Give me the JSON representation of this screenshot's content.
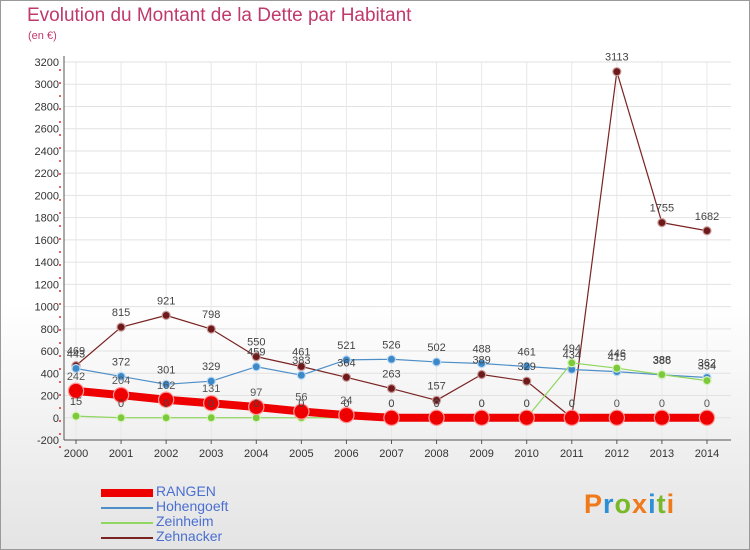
{
  "header": {
    "title": "Evolution du Montant de la Dette par Habitant",
    "unit": "(en €)"
  },
  "logo": {
    "text": "Proxiti",
    "colors": [
      "#f07a1a",
      "#2d8fd6",
      "#79b829",
      "#f07a1a",
      "#2d8fd6",
      "#79b829",
      "#f07a1a"
    ]
  },
  "chart_data": {
    "type": "line",
    "title": "Evolution du Montant de la Dette par Habitant",
    "ylabel": "(en €)",
    "xlabel": "",
    "x": [
      "2000",
      "2001",
      "2002",
      "2003",
      "2004",
      "2005",
      "2006",
      "2007",
      "2008",
      "2009",
      "2010",
      "2011",
      "2012",
      "2013",
      "2014"
    ],
    "ylim": [
      -200,
      3200
    ],
    "yticks": [
      -200,
      0,
      200,
      400,
      600,
      800,
      1000,
      1200,
      1400,
      1600,
      1800,
      2000,
      2200,
      2400,
      2600,
      2800,
      3000,
      3200
    ],
    "grid": true,
    "legend_position": "bottom-left",
    "series": [
      {
        "name": "RANGEN",
        "color": "#ee0000",
        "values": [
          242,
          204,
          162,
          131,
          97,
          56,
          24,
          0,
          0,
          0,
          0,
          0,
          0,
          0,
          0
        ]
      },
      {
        "name": "Hohengoeft",
        "color": "#4f8fc7",
        "values": [
          443,
          372,
          301,
          329,
          459,
          383,
          521,
          526,
          502,
          488,
          461,
          434,
          415,
          386,
          362
        ]
      },
      {
        "name": "Zeinheim",
        "color": "#90d660",
        "values": [
          15,
          0,
          0,
          0,
          0,
          0,
          0,
          0,
          0,
          0,
          0,
          494,
          446,
          388,
          334
        ]
      },
      {
        "name": "Zehnacker",
        "color": "#7a2323",
        "values": [
          469,
          815,
          921,
          798,
          550,
          461,
          364,
          263,
          157,
          389,
          329,
          0,
          3113,
          1755,
          1682
        ]
      }
    ]
  }
}
